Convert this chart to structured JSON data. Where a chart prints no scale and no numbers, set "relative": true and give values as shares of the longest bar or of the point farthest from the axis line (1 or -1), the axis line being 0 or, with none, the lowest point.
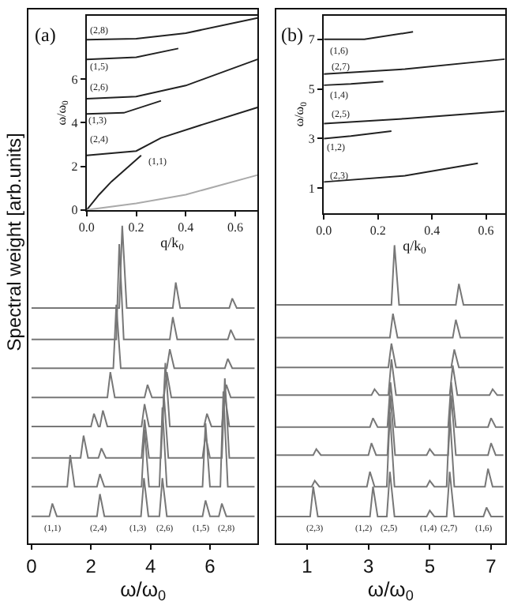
{
  "chart_data": [
    {
      "type": "line",
      "xlabel": "q/k$_{0}$",
      "ylabel": "ω/ω$_{0}$",
      "xlim": [
        0,
        0.69
      ],
      "ylim": [
        0,
        8.9
      ],
      "xticks": [
        {
          "value": 0,
          "label": "0.0"
        },
        {
          "value": 0.2,
          "label": "0.2"
        },
        {
          "value": 0.4,
          "label": "0.4"
        },
        {
          "value": 0.6,
          "label": "0.6"
        }
      ],
      "yticks": [
        0,
        2,
        4,
        6
      ],
      "series": [
        {
          "color": "#222222",
          "x": [
            0,
            0.2,
            0.4,
            0.69
          ],
          "values": [
            7.8,
            7.85,
            8.1,
            8.8
          ]
        },
        {
          "color": "#222222",
          "x": [
            0,
            0.2,
            0.37
          ],
          "values": [
            6.9,
            7.0,
            7.4
          ]
        },
        {
          "color": "#222222",
          "x": [
            0,
            0.2,
            0.4,
            0.69
          ],
          "values": [
            5.1,
            5.2,
            5.7,
            6.9
          ]
        },
        {
          "color": "#222222",
          "x": [
            0,
            0.15,
            0.3
          ],
          "values": [
            4.4,
            4.45,
            5.0
          ]
        },
        {
          "color": "#222222",
          "x": [
            0,
            0.2,
            0.3,
            0.45,
            0.69
          ],
          "values": [
            2.5,
            2.7,
            3.3,
            3.85,
            4.7
          ]
        },
        {
          "color": "#222222",
          "x": [
            0,
            0.05,
            0.1,
            0.22
          ],
          "values": [
            0,
            0.7,
            1.3,
            2.5
          ]
        },
        {
          "color": "#aaaaaa",
          "x": [
            0,
            0.2,
            0.4,
            0.69
          ],
          "values": [
            0,
            0.3,
            0.7,
            1.6
          ]
        }
      ],
      "annotations": [
        "(a)",
        "(2,8)",
        "(1,5)",
        "(2,6)",
        "(1,3)",
        "(2,4)",
        "(1,1)"
      ]
    },
    {
      "type": "line",
      "xlabel": "q/k$_{0}$",
      "ylabel": "ω/ω$_{0}$",
      "xlim": [
        0,
        0.67
      ],
      "ylim": [
        0,
        7.95
      ],
      "xticks": [
        {
          "value": 0,
          "label": "0.0"
        },
        {
          "value": 0.2,
          "label": "0.2"
        },
        {
          "value": 0.4,
          "label": "0.4"
        },
        {
          "value": 0.6,
          "label": "0.6"
        }
      ],
      "yticks": [
        1,
        3,
        5,
        7
      ],
      "series": [
        {
          "color": "#222222",
          "x": [
            0,
            0.15,
            0.33
          ],
          "values": [
            7.0,
            7.0,
            7.3
          ]
        },
        {
          "color": "#222222",
          "x": [
            0,
            0.3,
            0.67
          ],
          "values": [
            5.6,
            5.8,
            6.2
          ]
        },
        {
          "color": "#222222",
          "x": [
            0,
            0.1,
            0.22
          ],
          "values": [
            5.15,
            5.2,
            5.3
          ]
        },
        {
          "color": "#222222",
          "x": [
            0,
            0.3,
            0.67
          ],
          "values": [
            3.6,
            3.8,
            4.1
          ]
        },
        {
          "color": "#222222",
          "x": [
            0,
            0.1,
            0.25
          ],
          "values": [
            3.0,
            3.1,
            3.3
          ]
        },
        {
          "color": "#222222",
          "x": [
            0,
            0.3,
            0.57
          ],
          "values": [
            1.25,
            1.5,
            2.0
          ]
        }
      ],
      "annotations": [
        "(b)",
        "(1,6)",
        "(2,7)",
        "(1,4)",
        "(2,5)",
        "(1,2)",
        "(2,3)"
      ]
    },
    {
      "type": "line",
      "relative": true,
      "tick_labels": "x",
      "xlabel": "ω/ω$_{0}$",
      "ylabel": "Spectral weight [arb.units]",
      "xlim": [
        -0.1,
        7.6
      ],
      "xticks": [
        0,
        2,
        4,
        6
      ],
      "series": [
        {
          "color": "#777777",
          "x": [
            0,
            0.6,
            0.7,
            0.85,
            2.2,
            2.3,
            2.45,
            3.68,
            3.78,
            3.93,
            4.3,
            4.4,
            4.55,
            5.75,
            5.85,
            6.0,
            6.3,
            6.4,
            6.55,
            7.5
          ],
          "values": [
            0.085,
            0.085,
            0.125,
            0.085,
            0.085,
            0.155,
            0.085,
            0.085,
            0.205,
            0.085,
            0.085,
            0.205,
            0.085,
            0.085,
            0.135,
            0.085,
            0.085,
            0.125,
            0.085,
            0.085
          ]
        },
        {
          "color": "#777777",
          "x": [
            0,
            1.2,
            1.3,
            1.45,
            2.2,
            2.3,
            2.45,
            3.7,
            3.8,
            3.95,
            4.3,
            4.4,
            4.55,
            5.75,
            5.85,
            6.0,
            6.35,
            6.45,
            6.6,
            7.5
          ],
          "values": [
            0.178,
            0.178,
            0.278,
            0.178,
            0.178,
            0.218,
            0.178,
            0.178,
            0.358,
            0.178,
            0.178,
            0.428,
            0.178,
            0.178,
            0.378,
            0.178,
            0.178,
            0.478,
            0.178,
            0.178
          ]
        },
        {
          "color": "#777777",
          "x": [
            0,
            1.65,
            1.75,
            1.9,
            2.25,
            2.35,
            2.5,
            3.7,
            3.8,
            3.95,
            4.35,
            4.45,
            4.6,
            5.75,
            5.85,
            6.0,
            6.4,
            6.5,
            6.65,
            7.5
          ],
          "values": [
            0.269,
            0.269,
            0.339,
            0.269,
            0.269,
            0.299,
            0.269,
            0.269,
            0.389,
            0.269,
            0.269,
            0.469,
            0.269,
            0.269,
            0.339,
            0.269,
            0.269,
            0.519,
            0.269,
            0.269
          ]
        },
        {
          "color": "#777777",
          "x": [
            0,
            2.0,
            2.1,
            2.25,
            2.3,
            2.4,
            2.55,
            3.7,
            3.8,
            3.95,
            4.4,
            4.5,
            4.65,
            5.8,
            5.9,
            6.05,
            6.4,
            6.5,
            6.65,
            7.5
          ],
          "values": [
            0.368,
            0.368,
            0.408,
            0.368,
            0.368,
            0.418,
            0.368,
            0.368,
            0.438,
            0.368,
            0.368,
            0.568,
            0.368,
            0.368,
            0.408,
            0.368,
            0.368,
            0.468,
            0.368,
            0.368
          ]
        },
        {
          "color": "#777777",
          "x": [
            0,
            2.55,
            2.65,
            2.8,
            3.8,
            3.9,
            4.05,
            4.45,
            4.55,
            4.7,
            6.45,
            6.55,
            6.7,
            7.5
          ],
          "values": [
            0.459,
            0.459,
            0.539,
            0.459,
            0.459,
            0.499,
            0.459,
            0.459,
            0.539,
            0.459,
            0.459,
            0.499,
            0.459,
            0.459
          ]
        },
        {
          "color": "#777777",
          "x": [
            0,
            2.75,
            2.85,
            3.0,
            4.55,
            4.65,
            4.8,
            6.5,
            6.6,
            6.75,
            7.5
          ],
          "values": [
            0.551,
            0.551,
            0.751,
            0.551,
            0.551,
            0.611,
            0.551,
            0.551,
            0.581,
            0.551,
            0.551
          ]
        },
        {
          "color": "#777777",
          "x": [
            0,
            2.85,
            2.95,
            3.1,
            4.65,
            4.75,
            4.9,
            6.6,
            6.7,
            6.85,
            7.5
          ],
          "values": [
            0.642,
            0.642,
            0.942,
            0.642,
            0.642,
            0.712,
            0.642,
            0.642,
            0.672,
            0.642,
            0.642
          ]
        },
        {
          "color": "#777777",
          "x": [
            0,
            2.95,
            3.05,
            3.2,
            4.75,
            4.85,
            5.0,
            6.65,
            6.75,
            6.9,
            7.5
          ],
          "values": [
            0.741,
            0.741,
            1.0,
            0.741,
            0.741,
            0.821,
            0.741,
            0.741,
            0.771,
            0.741,
            0.741
          ]
        }
      ],
      "annotations": [
        "(1,1)",
        "(2,4)",
        "(1,3)",
        "(2,6)",
        "(1,5)",
        "(2,8)"
      ]
    },
    {
      "type": "line",
      "relative": true,
      "tick_labels": "x",
      "xlabel": "ω/ω$_{0}$",
      "xlim": [
        0,
        7.45
      ],
      "xticks": [
        1,
        3,
        5,
        7
      ],
      "series": [
        {
          "color": "#777777",
          "x": [
            0,
            1.1,
            1.2,
            1.35,
            3.05,
            3.15,
            3.3,
            3.6,
            3.7,
            3.85,
            4.9,
            5.0,
            5.15,
            5.55,
            5.65,
            5.8,
            6.75,
            6.85,
            7.0,
            7.4
          ],
          "values": [
            0.09,
            0.09,
            0.19,
            0.09,
            0.09,
            0.19,
            0.09,
            0.09,
            0.24,
            0.09,
            0.09,
            0.11,
            0.09,
            0.09,
            0.24,
            0.09,
            0.09,
            0.12,
            0.09,
            0.09
          ]
        },
        {
          "color": "#777777",
          "x": [
            0,
            1.15,
            1.25,
            1.4,
            2.95,
            3.05,
            3.2,
            3.6,
            3.7,
            3.85,
            4.9,
            5.0,
            5.15,
            5.55,
            5.65,
            5.8,
            6.8,
            6.9,
            7.05,
            7.4
          ],
          "values": [
            0.19,
            0.19,
            0.21,
            0.19,
            0.19,
            0.24,
            0.19,
            0.19,
            0.44,
            0.19,
            0.19,
            0.21,
            0.19,
            0.19,
            0.44,
            0.19,
            0.19,
            0.25,
            0.19,
            0.19
          ]
        },
        {
          "color": "#777777",
          "x": [
            0,
            1.2,
            1.3,
            1.45,
            3.0,
            3.1,
            3.25,
            3.62,
            3.72,
            3.87,
            4.9,
            5.0,
            5.15,
            5.6,
            5.7,
            5.85,
            6.9,
            7.0,
            7.15,
            7.4
          ],
          "values": [
            0.296,
            0.296,
            0.316,
            0.296,
            0.296,
            0.336,
            0.296,
            0.296,
            0.496,
            0.296,
            0.296,
            0.316,
            0.296,
            0.296,
            0.496,
            0.296,
            0.296,
            0.336,
            0.296,
            0.296
          ]
        },
        {
          "color": "#777777",
          "x": [
            0,
            3.05,
            3.15,
            3.3,
            3.62,
            3.72,
            3.87,
            5.6,
            5.7,
            5.85,
            6.9,
            7.0,
            7.15,
            7.4
          ],
          "values": [
            0.39,
            0.39,
            0.42,
            0.39,
            0.39,
            0.54,
            0.39,
            0.39,
            0.54,
            0.39,
            0.39,
            0.42,
            0.39,
            0.39
          ]
        },
        {
          "color": "#777777",
          "x": [
            0,
            3.1,
            3.2,
            3.35,
            3.65,
            3.75,
            3.9,
            5.65,
            5.75,
            5.9,
            6.95,
            7.05,
            7.2,
            7.4
          ],
          "values": [
            0.497,
            0.497,
            0.517,
            0.497,
            0.497,
            0.617,
            0.497,
            0.497,
            0.597,
            0.497,
            0.497,
            0.517,
            0.497,
            0.497
          ]
        },
        {
          "color": "#777777",
          "x": [
            0,
            3.65,
            3.75,
            3.9,
            5.7,
            5.8,
            5.95,
            7.4
          ],
          "values": [
            0.59,
            0.59,
            0.67,
            0.59,
            0.59,
            0.65,
            0.59,
            0.59
          ]
        },
        {
          "color": "#777777",
          "x": [
            0,
            3.7,
            3.8,
            3.95,
            5.75,
            5.85,
            6.0,
            7.4
          ],
          "values": [
            0.69,
            0.69,
            0.77,
            0.69,
            0.69,
            0.75,
            0.69,
            0.69
          ]
        },
        {
          "color": "#777777",
          "x": [
            0,
            3.75,
            3.85,
            4.0,
            5.85,
            5.95,
            6.1,
            7.4
          ],
          "values": [
            0.8,
            0.8,
            1.0,
            0.8,
            0.8,
            0.87,
            0.8,
            0.8
          ]
        }
      ],
      "annotations": [
        "(2,3)",
        "(1,2)",
        "(2,5)",
        "(1,4)",
        "(2,7)",
        "(1,6)"
      ]
    }
  ]
}
